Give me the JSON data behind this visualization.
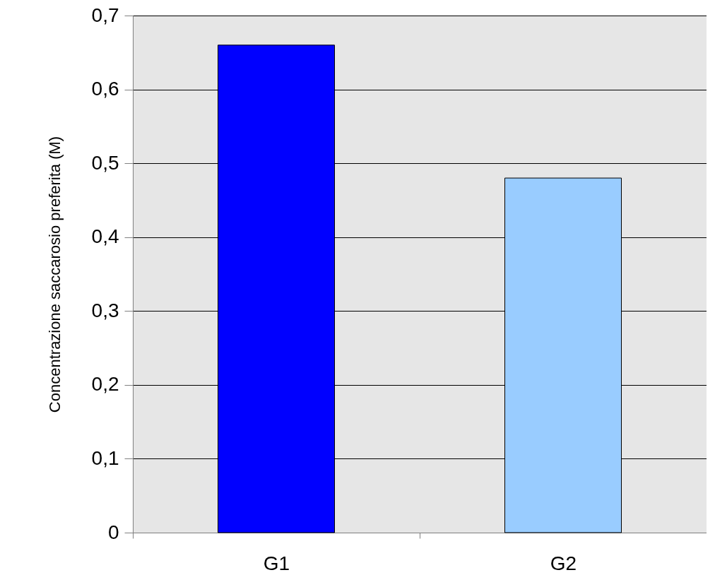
{
  "chart_data": {
    "type": "bar",
    "ylabel": "Concentrazione saccarosio preferita (M)",
    "categories": [
      "G1",
      "G2"
    ],
    "values": [
      0.66,
      0.48
    ],
    "colors": [
      "#0000ff",
      "#99ccff"
    ],
    "ylim": [
      0,
      0.7
    ],
    "yticks": [
      {
        "value": 0,
        "label": "0"
      },
      {
        "value": 0.1,
        "label": "0,1"
      },
      {
        "value": 0.2,
        "label": "0,2"
      },
      {
        "value": 0.3,
        "label": "0,3"
      },
      {
        "value": 0.4,
        "label": "0,4"
      },
      {
        "value": 0.5,
        "label": "0,5"
      },
      {
        "value": 0.6,
        "label": "0,6"
      },
      {
        "value": 0.7,
        "label": "0,7"
      }
    ],
    "grid": "y",
    "legend": false
  }
}
